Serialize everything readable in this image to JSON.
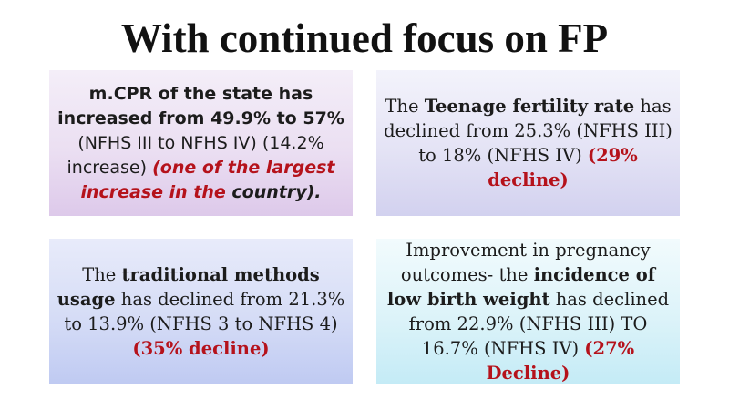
{
  "title": "With continued focus on FP",
  "boxes": {
    "mcpr": {
      "part1": "m.CPR of the state has increased from 49.9% to 57%",
      "part2": " (NFHS III to NFHS IV) (14.2% increase) ",
      "part3": "(one of the largest increase in the",
      "part4": " country)."
    },
    "teenage": {
      "part1": "The ",
      "part2": "Teenage fertility rate",
      "part3": " has declined from 25.3% (NFHS III) to 18% (NFHS IV) ",
      "part4": "(29% decline)"
    },
    "traditional": {
      "part1": "The ",
      "part2": "traditional methods usage",
      "part3": " has declined from 21.3% to 13.9% (NFHS 3 to NFHS 4) ",
      "part4": "(35% decline)"
    },
    "pregnancy": {
      "part1": "Improvement in pregnancy outcomes- the ",
      "part2": "incidence of low birth weight",
      "part3": " has declined from 22.9% (NFHS III) TO 16.7% (NFHS IV) ",
      "part4": "(27% Decline)"
    }
  },
  "colors": {
    "highlight_red": "#b5121b"
  }
}
